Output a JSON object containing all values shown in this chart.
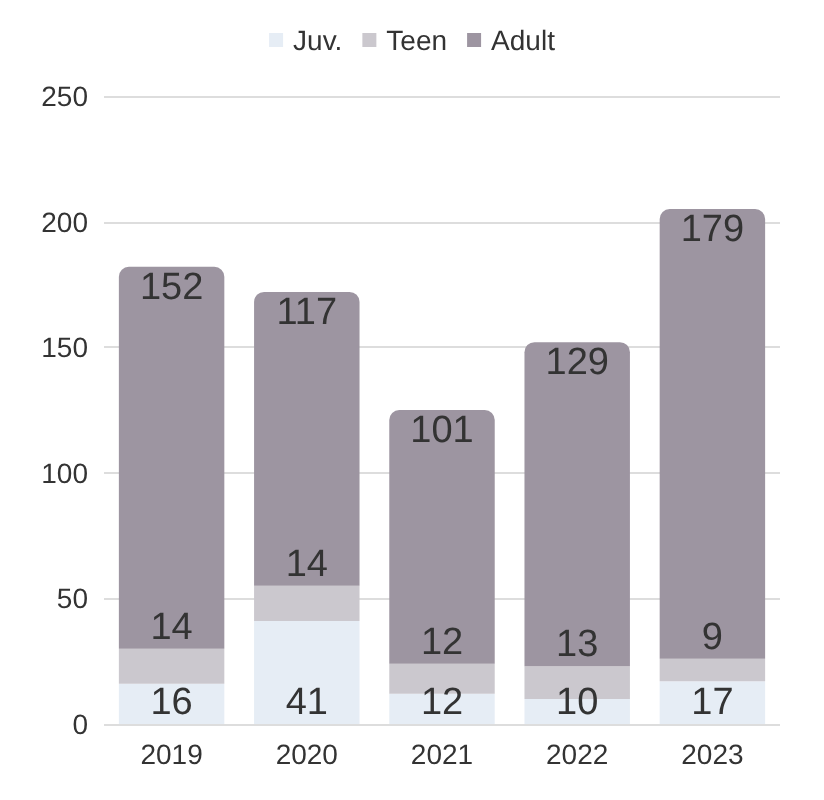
{
  "chart_data": {
    "type": "bar",
    "stacked": true,
    "categories": [
      "2019",
      "2020",
      "2021",
      "2022",
      "2023"
    ],
    "series": [
      {
        "name": "Juv.",
        "color": "#e6edf5",
        "values": [
          16,
          41,
          12,
          10,
          17
        ]
      },
      {
        "name": "Teen",
        "color": "#cbc8ce",
        "values": [
          14,
          14,
          12,
          13,
          9
        ]
      },
      {
        "name": "Adult",
        "color": "#9d95a1",
        "values": [
          152,
          117,
          101,
          129,
          179
        ]
      }
    ],
    "ylim": [
      0,
      250
    ],
    "yticks": [
      0,
      50,
      100,
      150,
      200,
      250
    ],
    "grid": "y",
    "legend": "top",
    "data_labels": true
  }
}
